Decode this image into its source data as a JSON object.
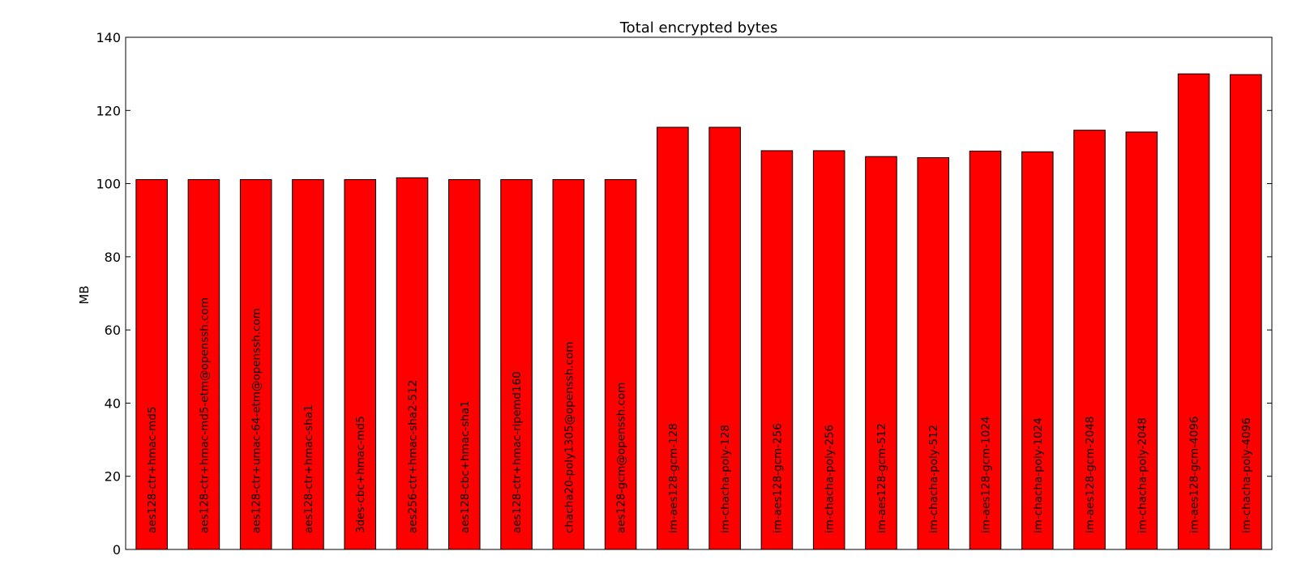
{
  "chart_data": {
    "type": "bar",
    "title": "Total encrypted bytes",
    "xlabel": "",
    "ylabel": "MB",
    "ylim": [
      0,
      140
    ],
    "yticks": [
      0,
      20,
      40,
      60,
      80,
      100,
      120,
      140
    ],
    "grid": false,
    "bar_color": "#ff0000",
    "categories": [
      "aes128-ctr+hmac-md5",
      "aes128-ctr+hmac-md5-etm@openssh.com",
      "aes128-ctr+umac-64-etm@openssh.com",
      "aes128-ctr+hmac-sha1",
      "3des-cbc+hmac-md5",
      "aes256-ctr+hmac-sha2-512",
      "aes128-cbc+hmac-sha1",
      "aes128-ctr+hmac-ripemd160",
      "chacha20-poly1305@openssh.com",
      "aes128-gcm@openssh.com",
      "im-aes128-gcm-128",
      "im-chacha-poly-128",
      "im-aes128-gcm-256",
      "im-chacha-poly-256",
      "im-aes128-gcm-512",
      "im-chacha-poly-512",
      "im-aes128-gcm-1024",
      "im-chacha-poly-1024",
      "im-aes128-gcm-2048",
      "im-chacha-poly-2048",
      "im-aes128-gcm-4096",
      "im-chacha-poly-4096"
    ],
    "values": [
      101.1,
      101.1,
      101.1,
      101.1,
      101.1,
      101.6,
      101.1,
      101.1,
      101.1,
      101.1,
      115.4,
      115.4,
      109.0,
      109.0,
      107.4,
      107.1,
      108.9,
      108.7,
      114.6,
      114.1,
      130.0,
      129.8
    ]
  }
}
